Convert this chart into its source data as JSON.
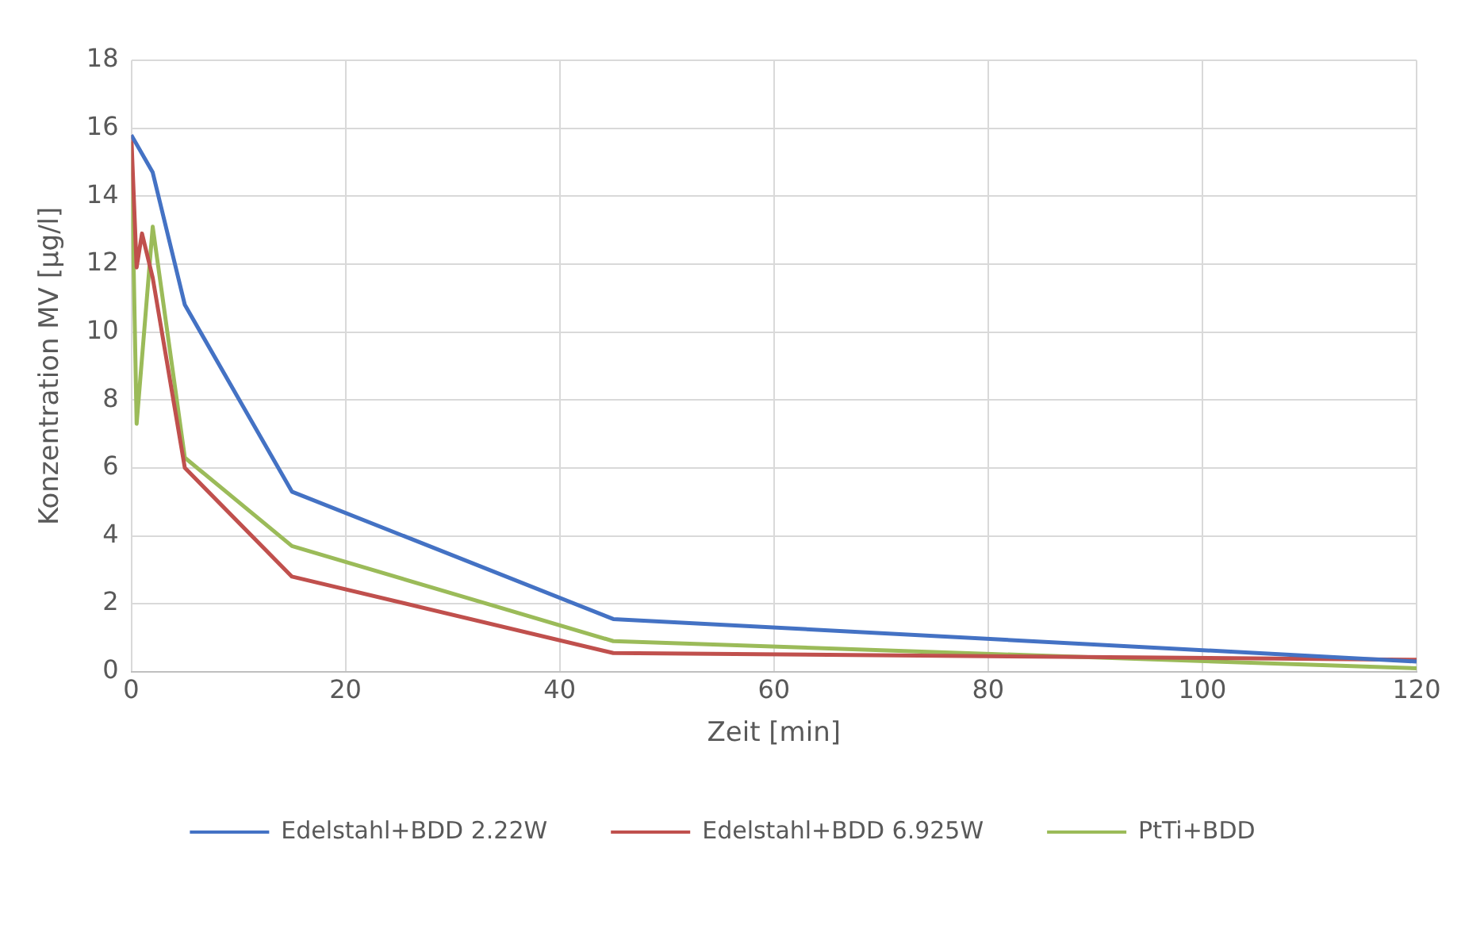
{
  "chart_data": {
    "type": "line",
    "xlabel": "Zeit [min]",
    "ylabel": "Konzentration MV [µg/l]",
    "xlim": [
      0,
      120
    ],
    "xticks": [
      0,
      20,
      40,
      60,
      80,
      100,
      120
    ],
    "ylim": [
      0,
      18
    ],
    "yticks": [
      0,
      2,
      4,
      6,
      8,
      10,
      12,
      14,
      16,
      18
    ],
    "grid": true,
    "legend": "bottom",
    "marker": "none",
    "series": [
      {
        "name": "Edelstahl+BDD 2.22W",
        "color": "#4472c4",
        "x": [
          0,
          2,
          5,
          15,
          45,
          120
        ],
        "values": [
          15.8,
          14.7,
          10.8,
          5.3,
          1.55,
          0.3
        ]
      },
      {
        "name": "Edelstahl+BDD 6.925W",
        "color": "#c0504d",
        "x": [
          0,
          0.5,
          1,
          2,
          5,
          15,
          45,
          120
        ],
        "values": [
          15.8,
          11.9,
          12.9,
          11.6,
          6.0,
          2.8,
          0.55,
          0.35
        ]
      },
      {
        "name": "PtTi+BDD",
        "color": "#9bbb59",
        "x": [
          0,
          0.5,
          2,
          5,
          15,
          45,
          120
        ],
        "values": [
          15.6,
          7.3,
          13.1,
          6.3,
          3.7,
          0.9,
          0.1
        ]
      }
    ]
  }
}
